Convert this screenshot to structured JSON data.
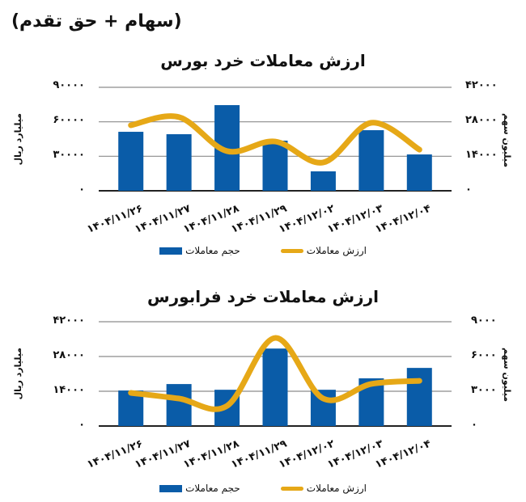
{
  "page": {
    "title": "(سهام + حق تقدم)"
  },
  "colors": {
    "bar": "#0a5ca8",
    "line": "#e6a817",
    "grid": "#8c8c8c",
    "axis": "#222222"
  },
  "legend": {
    "line_label": "ارزش معاملات",
    "bar_label": "حجم معاملات"
  },
  "chart_data": [
    {
      "type": "bar+line",
      "title": "ارزش معاملات خرد بورس",
      "categories": [
        "۱۴۰۴/۱۱/۲۶",
        "۱۴۰۴/۱۱/۲۷",
        "۱۴۰۴/۱۱/۲۸",
        "۱۴۰۴/۱۱/۲۹",
        "۱۴۰۴/۱۲/۰۲",
        "۱۴۰۴/۱۲/۰۳",
        "۱۴۰۴/۱۲/۰۴"
      ],
      "left_axis": {
        "label": "میلیارد ریال",
        "ticks": [
          "۰",
          "۳۰۰۰۰",
          "۶۰۰۰۰",
          "۹۰۰۰۰"
        ],
        "ylim": [
          0,
          90000
        ]
      },
      "right_axis": {
        "label": "میلیون سهم",
        "ticks": [
          "۰",
          "۱۴۰۰۰",
          "۲۸۰۰۰",
          "۴۲۰۰۰"
        ],
        "ylim": [
          0,
          42000
        ]
      },
      "series": [
        {
          "name": "حجم معاملات",
          "type": "bar",
          "axis": "left",
          "values": [
            51300,
            49200,
            74500,
            43600,
            16900,
            52700,
            31600
          ]
        },
        {
          "name": "ارزش معاملات",
          "type": "line",
          "axis": "right",
          "values": [
            26600,
            29900,
            16100,
            20000,
            11500,
            27600,
            16700
          ]
        }
      ],
      "grid": true,
      "legend_position": "bottom"
    },
    {
      "type": "bar+line",
      "title": "ارزش معاملات خرد فرابورس",
      "categories": [
        "۱۴۰۴/۱۱/۲۶",
        "۱۴۰۴/۱۱/۲۷",
        "۱۴۰۴/۱۱/۲۸",
        "۱۴۰۴/۱۱/۲۹",
        "۱۴۰۴/۱۲/۰۲",
        "۱۴۰۴/۱۲/۰۳",
        "۱۴۰۴/۱۲/۰۴"
      ],
      "left_axis": {
        "label": "میلیارد ریال",
        "ticks": [
          "۰",
          "۱۴۰۰۰",
          "۲۸۰۰۰",
          "۴۲۰۰۰"
        ],
        "ylim": [
          0,
          42000
        ]
      },
      "right_axis": {
        "label": "میلیون سهم",
        "ticks": [
          "۰",
          "۳۰۰۰",
          "۶۰۰۰",
          "۹۰۰۰"
        ],
        "ylim": [
          0,
          9000
        ]
      },
      "series": [
        {
          "name": "حجم معاملات",
          "type": "bar",
          "axis": "left",
          "values": [
            14300,
            16900,
            14600,
            31200,
            14600,
            19200,
            23400
          ]
        },
        {
          "name": "ارزش معاملات",
          "type": "line",
          "axis": "right",
          "values": [
            2860,
            2370,
            1740,
            7600,
            2370,
            3630,
            3900
          ]
        }
      ],
      "grid": true,
      "legend_position": "bottom"
    }
  ]
}
